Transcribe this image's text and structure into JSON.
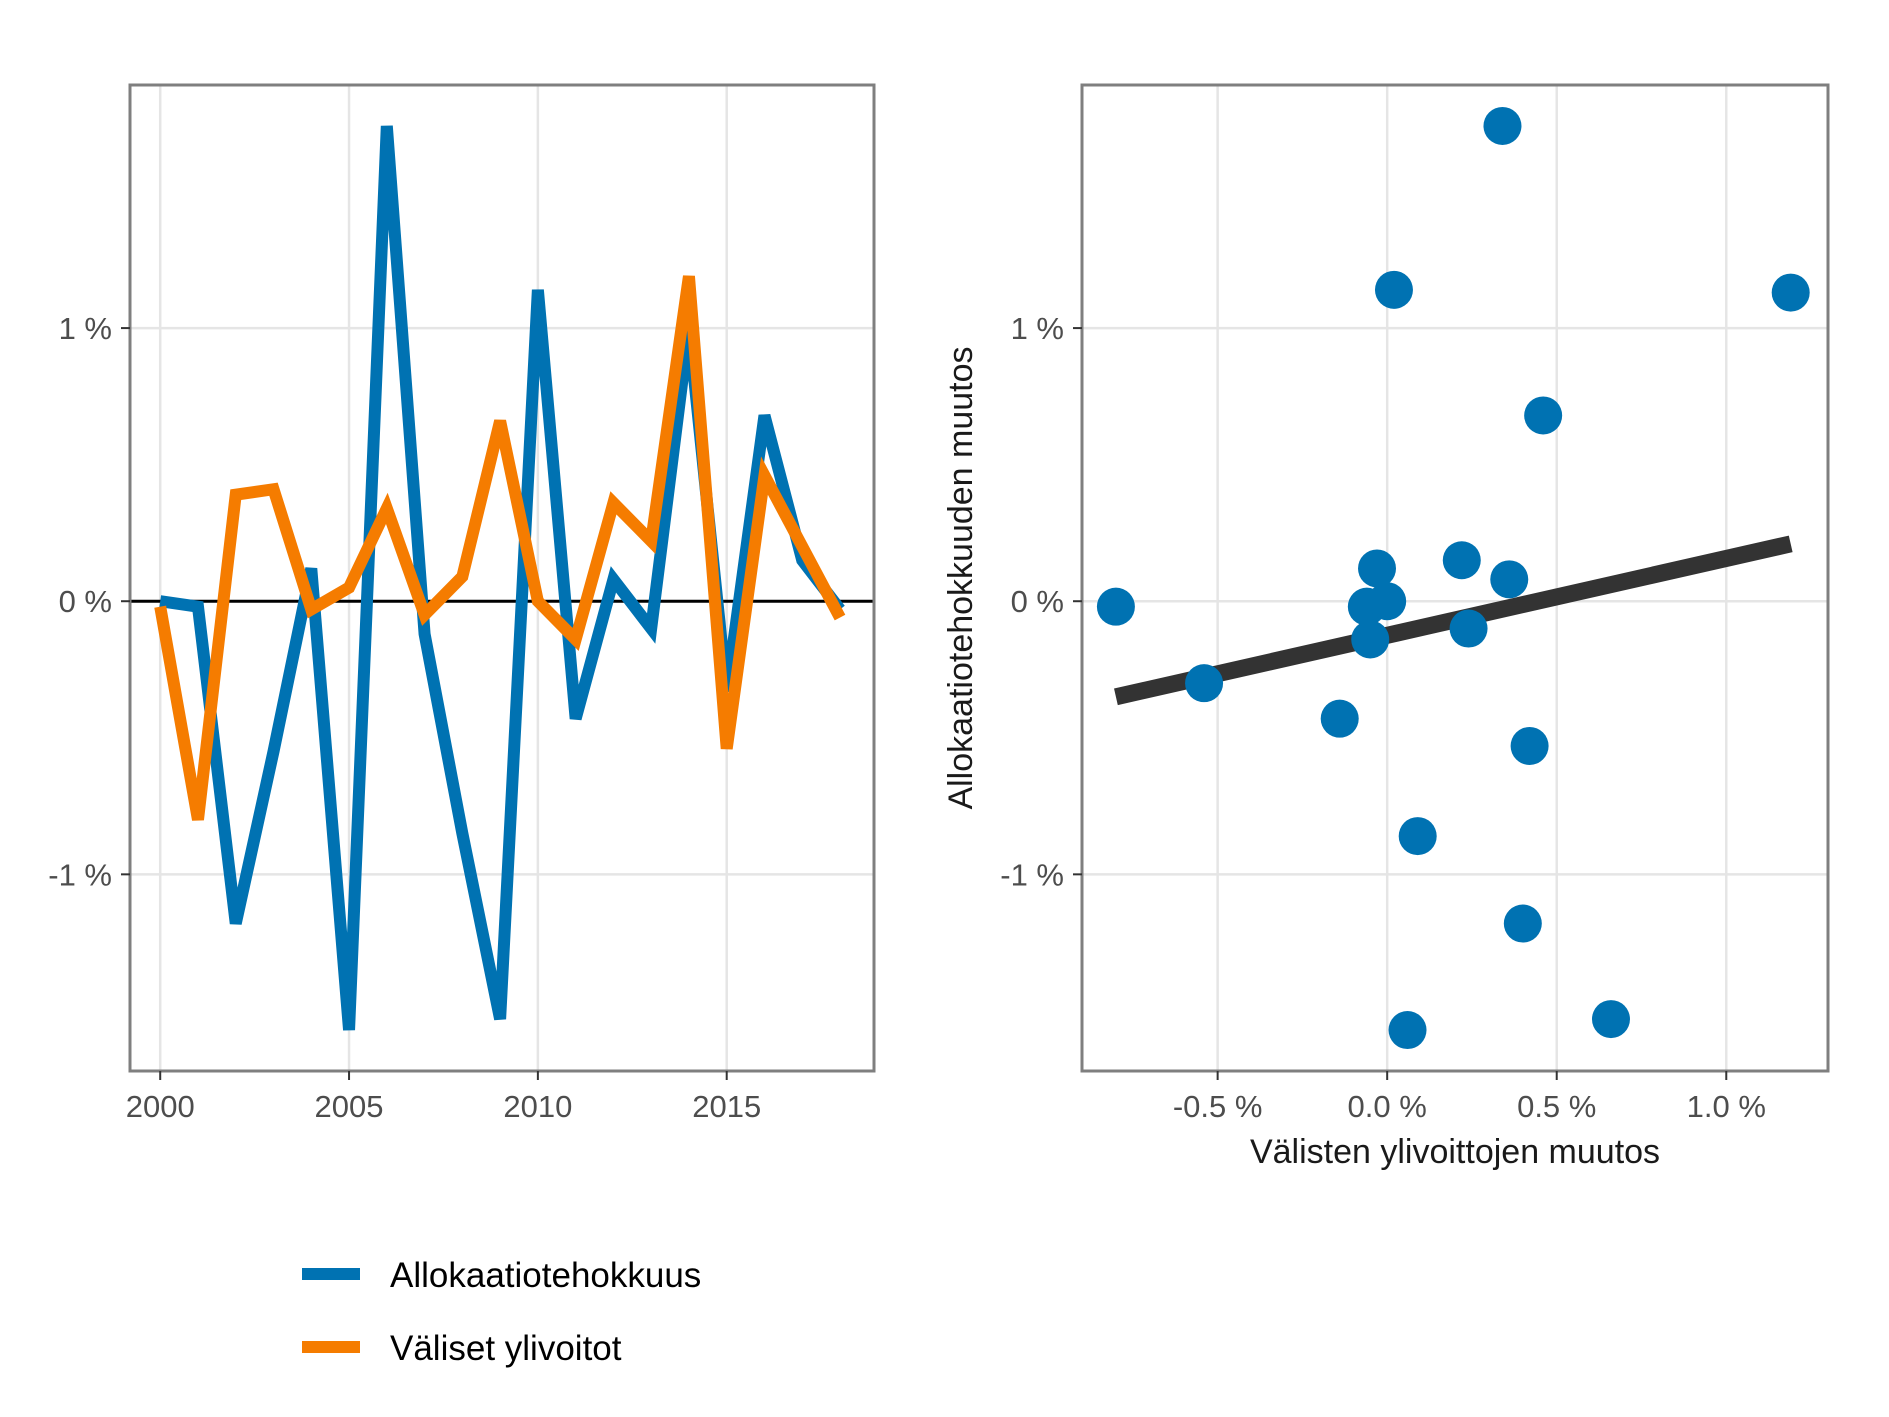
{
  "colors": {
    "allocation": "#0072B2",
    "profits": "#F57C00",
    "fit_line": "#333333",
    "grid": "#E5E5E5",
    "panel_border": "#7F7F7F",
    "zero_line": "#000000"
  },
  "legend": {
    "placement": "bottom-left",
    "items": [
      {
        "label": "Allokaatiotehokkuus",
        "color": "#0072B2"
      },
      {
        "label": "Väliset ylivoitot",
        "color": "#F57C00"
      }
    ]
  },
  "chart_data": [
    {
      "type": "line",
      "title": "",
      "xlabel": "",
      "ylabel": "",
      "x": [
        2000,
        2001,
        2002,
        2003,
        2004,
        2005,
        2006,
        2007,
        2008,
        2009,
        2010,
        2011,
        2012,
        2013,
        2014,
        2015,
        2016,
        2017,
        2018
      ],
      "series": [
        {
          "name": "Allokaatiotehokkuus",
          "color": "#0072B2",
          "values": [
            0.0,
            -0.02,
            -1.18,
            -0.55,
            0.12,
            -1.57,
            1.74,
            -0.12,
            -0.85,
            -1.53,
            1.14,
            -0.43,
            0.08,
            -0.1,
            1.0,
            -0.33,
            0.68,
            0.15,
            -0.03
          ]
        },
        {
          "name": "Väliset ylivoitot",
          "color": "#F57C00",
          "values": [
            -0.02,
            -0.8,
            0.39,
            0.41,
            -0.03,
            0.05,
            0.34,
            -0.05,
            0.09,
            0.66,
            0.0,
            -0.14,
            0.36,
            0.22,
            1.19,
            -0.54,
            0.46,
            0.2,
            -0.06
          ]
        }
      ],
      "xlim": [
        1999.2,
        2018.9
      ],
      "ylim": [
        -1.72,
        1.89
      ],
      "x_ticks": [
        {
          "value": 2000,
          "label": "2000"
        },
        {
          "value": 2005,
          "label": "2005"
        },
        {
          "value": 2010,
          "label": "2010"
        },
        {
          "value": 2015,
          "label": "2015"
        }
      ],
      "y_ticks": [
        {
          "value": 1,
          "label": "1 %"
        },
        {
          "value": 0,
          "label": "0 %"
        },
        {
          "value": -1,
          "label": "-1 %"
        }
      ],
      "zero_line": true,
      "grid": true
    },
    {
      "type": "scatter",
      "title": "",
      "xlabel": "Välisten ylivoittojen muutos",
      "ylabel": "Allokaatiotehokkuuden muutos",
      "points": [
        {
          "x": -0.8,
          "y": -0.02
        },
        {
          "x": -0.54,
          "y": -0.3
        },
        {
          "x": -0.14,
          "y": -0.43
        },
        {
          "x": -0.06,
          "y": -0.02
        },
        {
          "x": -0.05,
          "y": -0.14
        },
        {
          "x": -0.03,
          "y": 0.12
        },
        {
          "x": 0.0,
          "y": 0.0
        },
        {
          "x": 0.02,
          "y": 1.14
        },
        {
          "x": 0.06,
          "y": -1.57
        },
        {
          "x": 0.09,
          "y": -0.86
        },
        {
          "x": 0.22,
          "y": 0.15
        },
        {
          "x": 0.24,
          "y": -0.1
        },
        {
          "x": 0.34,
          "y": 1.74
        },
        {
          "x": 0.36,
          "y": 0.08
        },
        {
          "x": 0.4,
          "y": -1.18
        },
        {
          "x": 0.42,
          "y": -0.53
        },
        {
          "x": 0.46,
          "y": 0.68
        },
        {
          "x": 0.66,
          "y": -1.53
        },
        {
          "x": 1.19,
          "y": 1.13
        }
      ],
      "fit_line": {
        "x": [
          -0.8,
          1.19
        ],
        "y": [
          -0.35,
          0.21
        ]
      },
      "xlim": [
        -0.9,
        1.3
      ],
      "ylim": [
        -1.72,
        1.89
      ],
      "x_ticks": [
        {
          "value": -0.5,
          "label": "-0.5 %"
        },
        {
          "value": 0.0,
          "label": "0.0 %"
        },
        {
          "value": 0.5,
          "label": "0.5 %"
        },
        {
          "value": 1.0,
          "label": "1.0 %"
        }
      ],
      "y_ticks": [
        {
          "value": 1,
          "label": "1 %"
        },
        {
          "value": 0,
          "label": "0 %"
        },
        {
          "value": -1,
          "label": "-1 %"
        }
      ],
      "grid": true
    }
  ]
}
